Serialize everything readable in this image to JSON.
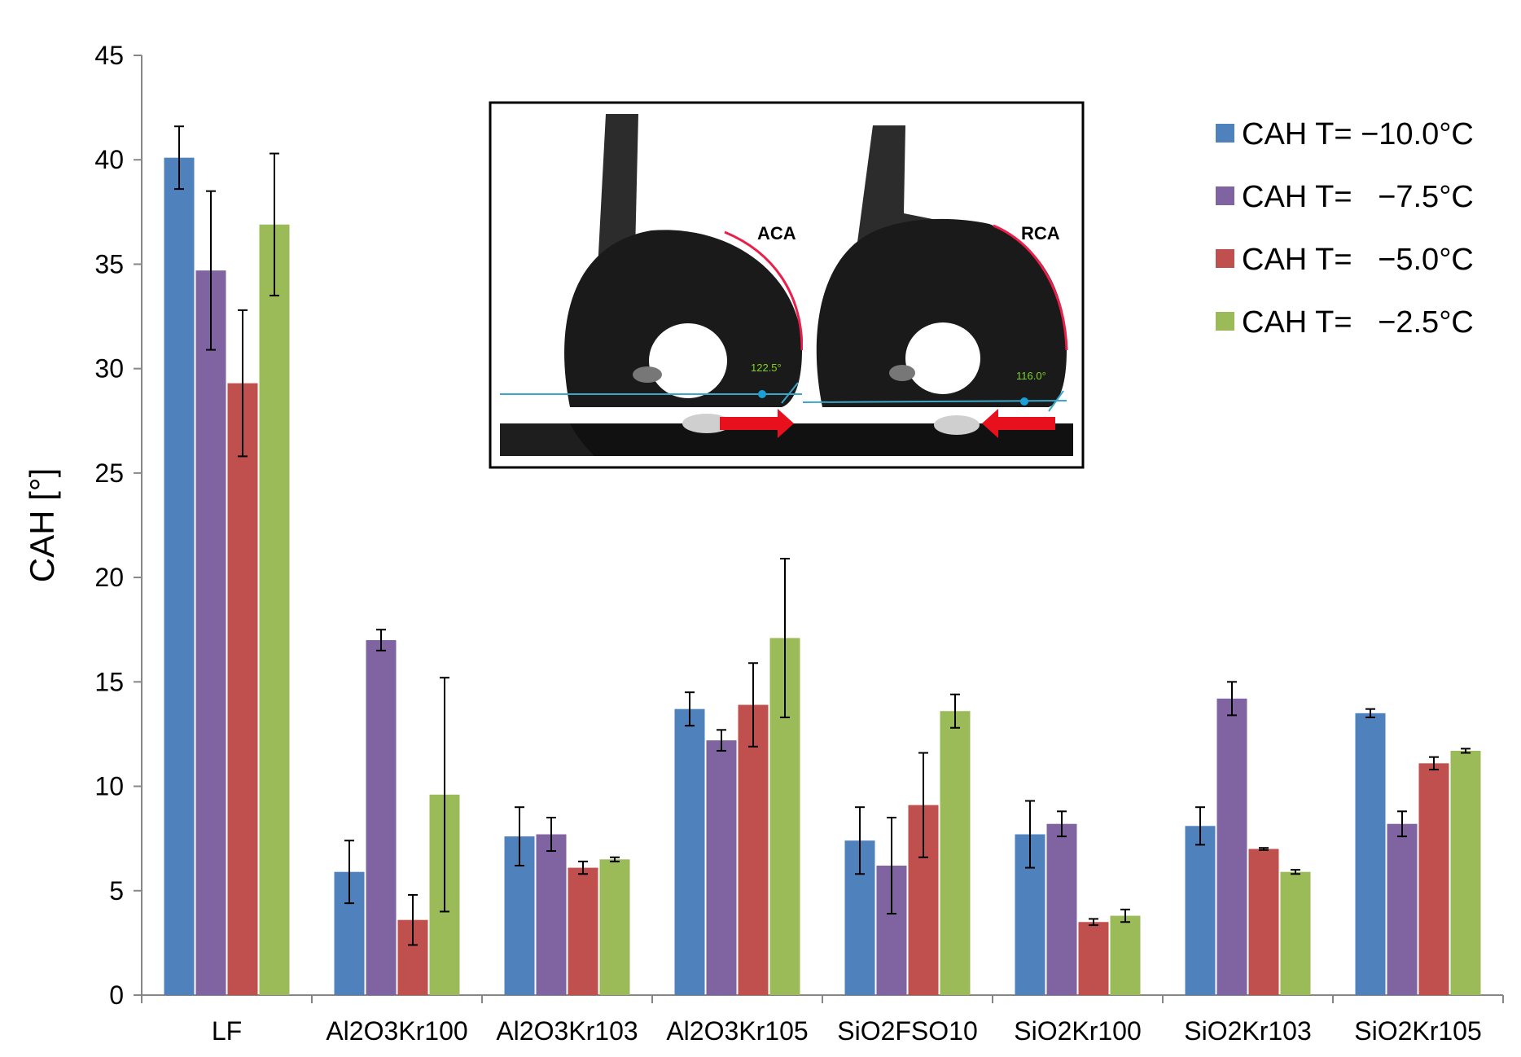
{
  "chart_data": {
    "type": "bar",
    "title": "",
    "xlabel": "",
    "ylabel": "CAH [°]",
    "ylim": [
      0,
      45
    ],
    "yticks": [
      0,
      5,
      10,
      15,
      20,
      25,
      30,
      35,
      40,
      45
    ],
    "grid": false,
    "legend_position": "top-right",
    "categories": [
      "LF",
      "Al2O3Kr100",
      "Al2O3Kr103",
      "Al2O3Kr105",
      "SiO2FSO10",
      "SiO2Kr100",
      "SiO2Kr103",
      "SiO2Kr105"
    ],
    "series": [
      {
        "name": "CAH T= −10.0°C",
        "color": "#4f81bd",
        "values": [
          40.1,
          5.9,
          7.6,
          13.7,
          7.4,
          7.7,
          8.1,
          13.5
        ],
        "errors": [
          1.5,
          1.5,
          1.4,
          0.8,
          1.6,
          1.6,
          0.9,
          0.2
        ]
      },
      {
        "name": "CAH T= −7.5°C",
        "color": "#8064a2",
        "values": [
          34.7,
          17.0,
          7.7,
          12.2,
          6.2,
          8.2,
          14.2,
          8.2
        ],
        "errors": [
          3.8,
          0.5,
          0.8,
          0.5,
          2.3,
          0.6,
          0.8,
          0.6
        ]
      },
      {
        "name": "CAH T= −5.0°C",
        "color": "#c0504d",
        "values": [
          29.3,
          3.6,
          6.1,
          13.9,
          9.1,
          3.5,
          7.0,
          11.1
        ],
        "errors": [
          3.5,
          1.2,
          0.3,
          2.0,
          2.5,
          0.15,
          0.05,
          0.3
        ]
      },
      {
        "name": "CAH T= −2.5°C",
        "color": "#9bbb59",
        "values": [
          36.9,
          9.6,
          6.5,
          17.1,
          13.6,
          3.8,
          5.9,
          11.7
        ],
        "errors": [
          3.4,
          5.6,
          0.1,
          3.8,
          0.8,
          0.3,
          0.1,
          0.1
        ]
      }
    ],
    "legend_entries": [
      "CAH T= −10.0°C",
      "CAH T=   −7.5°C",
      "CAH T=   −5.0°C",
      "CAH T=   −2.5°C"
    ]
  },
  "inset": {
    "left_label": "ACA",
    "right_label": "RCA",
    "left_angle": "122.5°",
    "right_angle": "116.0°"
  }
}
